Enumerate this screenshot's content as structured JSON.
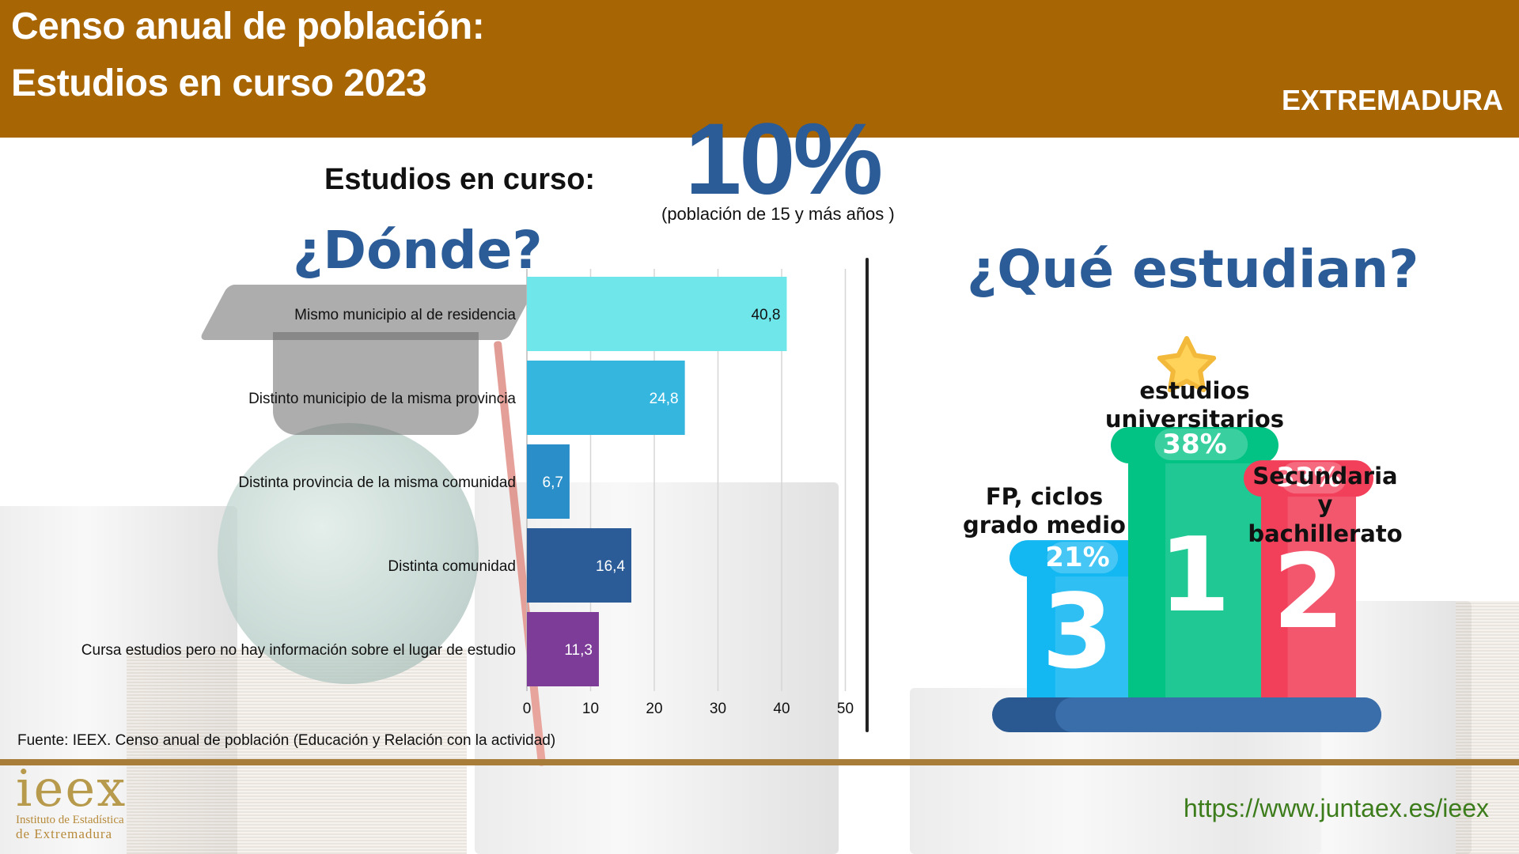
{
  "header": {
    "title_line1": "Censo anual de población:",
    "title_line2": "Estudios en curso 2023",
    "region": "EXTREMADURA"
  },
  "summary": {
    "label": "Estudios en curso:",
    "value": "10%",
    "note": "(población de 15 y más años )"
  },
  "question_where": "¿Dónde?",
  "question_what": "¿Qué estudian?",
  "colors": {
    "header": "#a86503",
    "title_blue": "#2b5c97",
    "footer_line": "#a87d3a",
    "url_green": "#3c7c1b"
  },
  "chart_data": [
    {
      "type": "bar",
      "orientation": "horizontal",
      "categories": [
        "Mismo municipio al de residencia",
        "Distinto municipio de la misma provincia",
        "Distinta provincia de la misma comunidad",
        "Distinta comunidad",
        "Cursa estudios pero no hay información sobre el lugar de estudio"
      ],
      "values": [
        40.8,
        24.8,
        6.7,
        16.4,
        11.3
      ],
      "value_labels": [
        "40,8",
        "24,8",
        "6,7",
        "16,4",
        "11,3"
      ],
      "bar_colors": [
        "#6ee6ea",
        "#35b6df",
        "#2a8ec9",
        "#2b5c97",
        "#7d3c98"
      ],
      "xlim": [
        0,
        50
      ],
      "xticks": [
        "0",
        "10",
        "20",
        "30",
        "40",
        "50"
      ],
      "grid": true
    },
    {
      "type": "bar",
      "style": "podium",
      "categories": [
        "FP, ciclos grado medio",
        "estudios universitarios",
        "Secundaria y bachillerato"
      ],
      "values": [
        21,
        38,
        33
      ],
      "value_labels": [
        "21%",
        "38%",
        "33%"
      ],
      "ranks": [
        "3",
        "1",
        "2"
      ],
      "colors": [
        "#13b7f2",
        "#02c284",
        "#f2405a"
      ]
    }
  ],
  "source": "Fuente:  IEEX. Censo anual de población  (Educación y Relación con la actividad)",
  "logo": {
    "word": "ieex",
    "line1": "Instituto de Estadística",
    "line2": "de Extremadura"
  },
  "url": "https://www.juntaex.es/ieex"
}
